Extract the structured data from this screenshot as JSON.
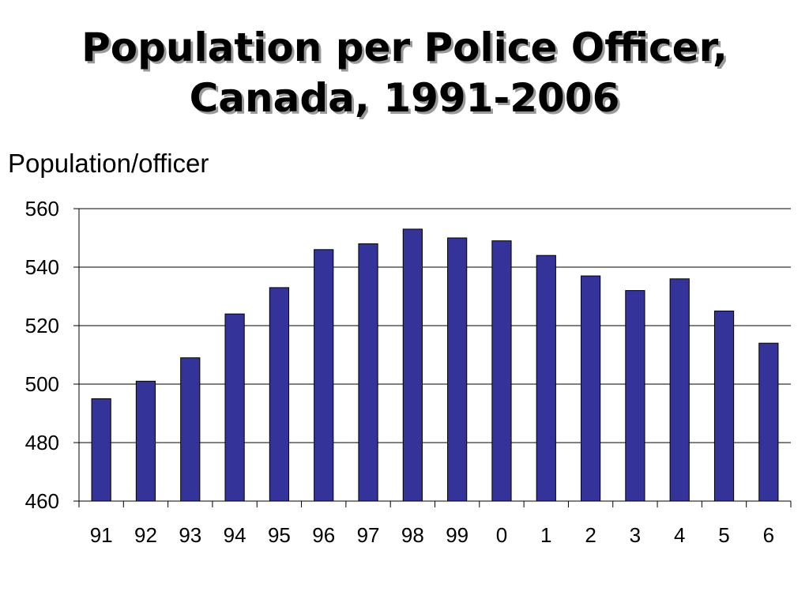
{
  "chart_data": {
    "type": "bar",
    "title_lines": [
      "Population per Police Officer,",
      "Canada, 1991-2006"
    ],
    "ylabel": "Population/officer",
    "categories": [
      "91",
      "92",
      "93",
      "94",
      "95",
      "96",
      "97",
      "98",
      "99",
      "0",
      "1",
      "2",
      "3",
      "4",
      "5",
      "6"
    ],
    "values": [
      495,
      501,
      509,
      524,
      533,
      546,
      548,
      553,
      550,
      549,
      544,
      537,
      532,
      536,
      525,
      514
    ],
    "ylim": [
      460,
      560
    ],
    "yticks": [
      460,
      480,
      500,
      520,
      540,
      560
    ],
    "grid": true,
    "legend": "none",
    "bar_color": "#333399",
    "bar_edge_color": "#000000"
  }
}
